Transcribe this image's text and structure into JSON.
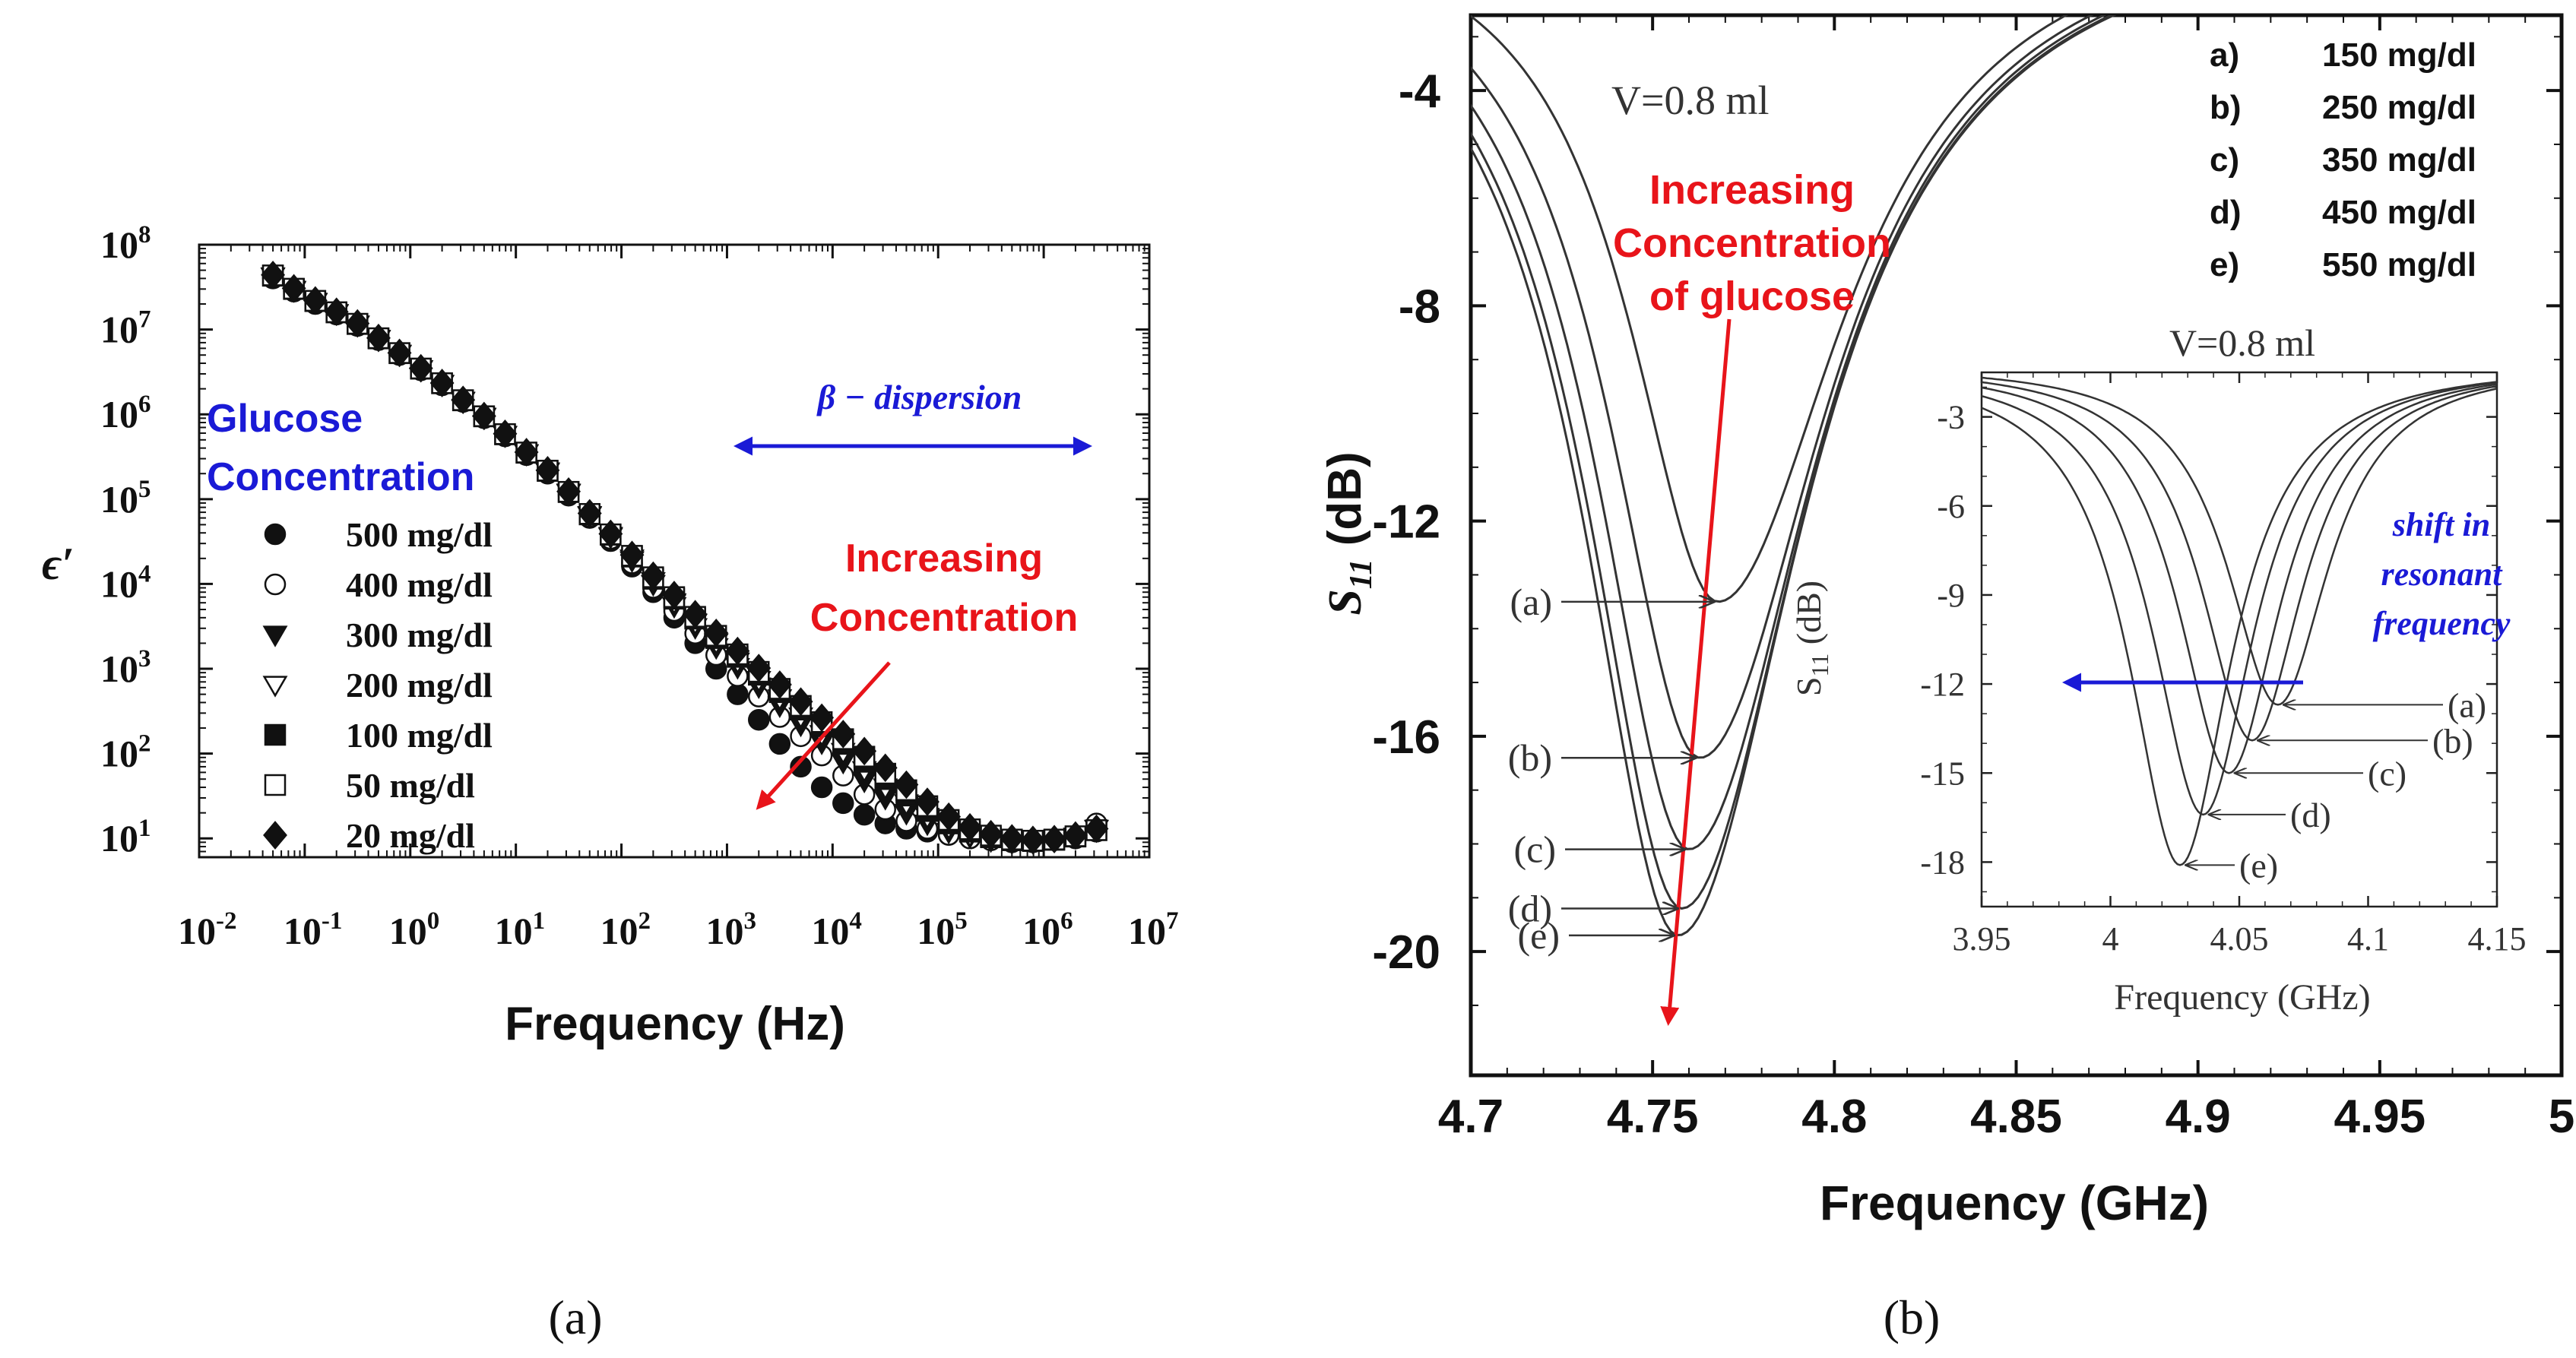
{
  "chart_data": [
    {
      "panel": "a",
      "panel_label": "(a)",
      "type": "scatter",
      "title": "",
      "xlabel": "Frequency (Hz)",
      "ylabel": "ϵ′",
      "xscale": "log",
      "yscale": "log",
      "xlim": [
        0.01,
        10000000
      ],
      "ylim": [
        6,
        100000000
      ],
      "x_tick_labels": [
        {
          "base": "10",
          "exp": "-2"
        },
        {
          "base": "10",
          "exp": "-1"
        },
        {
          "base": "10",
          "exp": "0"
        },
        {
          "base": "10",
          "exp": "1"
        },
        {
          "base": "10",
          "exp": "2"
        },
        {
          "base": "10",
          "exp": "3"
        },
        {
          "base": "10",
          "exp": "4"
        },
        {
          "base": "10",
          "exp": "5"
        },
        {
          "base": "10",
          "exp": "6"
        },
        {
          "base": "10",
          "exp": "7"
        }
      ],
      "y_tick_labels": [
        {
          "base": "10",
          "exp": "1"
        },
        {
          "base": "10",
          "exp": "2"
        },
        {
          "base": "10",
          "exp": "3"
        },
        {
          "base": "10",
          "exp": "4"
        },
        {
          "base": "10",
          "exp": "5"
        },
        {
          "base": "10",
          "exp": "6"
        },
        {
          "base": "10",
          "exp": "7"
        },
        {
          "base": "10",
          "exp": "8"
        }
      ],
      "legend_title": [
        "Glucose",
        "Concentration"
      ],
      "annotations": {
        "dispersion": "β − dispersion",
        "increasing": [
          "Increasing",
          "Concentration"
        ]
      },
      "x": [
        0.05,
        0.079,
        0.126,
        0.2,
        0.316,
        0.5,
        0.79,
        1.26,
        2,
        3.16,
        5,
        7.9,
        12.6,
        20,
        31.6,
        50,
        79,
        126,
        200,
        316,
        500,
        790,
        1260,
        2000,
        3160,
        5000,
        7900,
        12600,
        20000,
        31600,
        50000,
        79000,
        126000,
        200000,
        316000,
        500000,
        790000,
        1260000,
        2000000,
        3160000
      ],
      "series": [
        {
          "name": "500 mg/dl",
          "marker": "filled-circle",
          "values": [
            40000000,
            28000000,
            20000000,
            15000000,
            11000000,
            7500000,
            5000000,
            3300000,
            2200000,
            1400000,
            900000,
            550000,
            330000,
            200000,
            110000,
            60000,
            32000,
            16000,
            8000,
            4000,
            2000,
            1000,
            500,
            250,
            130,
            70,
            40,
            26,
            19,
            15,
            13,
            12,
            11,
            10,
            9.5,
            9,
            9,
            9.5,
            10,
            12
          ]
        },
        {
          "name": "400 mg/dl",
          "marker": "open-circle",
          "values": [
            41000000,
            28500000,
            20500000,
            15300000,
            11200000,
            7600000,
            5100000,
            3350000,
            2250000,
            1420000,
            920000,
            560000,
            340000,
            205000,
            115000,
            62000,
            34000,
            17500,
            9000,
            4800,
            2600,
            1450,
            820,
            470,
            270,
            160,
            95,
            55,
            33,
            22,
            16,
            13,
            11,
            10,
            9.5,
            9,
            9,
            9.5,
            10.5,
            15
          ]
        },
        {
          "name": "300 mg/dl",
          "marker": "filled-triangle-down",
          "values": [
            42000000,
            29000000,
            21000000,
            15500000,
            11400000,
            7700000,
            5150000,
            3400000,
            2280000,
            1440000,
            930000,
            570000,
            345000,
            210000,
            118000,
            64000,
            36000,
            19000,
            10000,
            5500,
            3100,
            1800,
            1050,
            620,
            370,
            220,
            135,
            80,
            48,
            30,
            20,
            15,
            12,
            10.5,
            9.5,
            9,
            9,
            9.5,
            10.5,
            13
          ]
        },
        {
          "name": "200 mg/dl",
          "marker": "open-triangle-down",
          "values": [
            42500000,
            29500000,
            21300000,
            15700000,
            11500000,
            7800000,
            5200000,
            3420000,
            2300000,
            1450000,
            940000,
            575000,
            350000,
            213000,
            120000,
            65000,
            37000,
            20000,
            10800,
            6100,
            3500,
            2050,
            1220,
            740,
            450,
            275,
            170,
            105,
            64,
            40,
            26,
            18,
            13.5,
            11,
            10,
            9.3,
            9.2,
            9.6,
            10.5,
            13
          ]
        },
        {
          "name": "100 mg/dl",
          "marker": "filled-square",
          "values": [
            43000000,
            30000000,
            21600000,
            15900000,
            11600000,
            7850000,
            5250000,
            3450000,
            2320000,
            1460000,
            945000,
            580000,
            352000,
            215000,
            121000,
            66000,
            38000,
            21000,
            11500,
            6700,
            3900,
            2300,
            1380,
            850,
            530,
            330,
            210,
            130,
            80,
            50,
            32,
            21,
            15,
            12,
            10.3,
            9.5,
            9.3,
            9.6,
            10.5,
            12.5
          ]
        },
        {
          "name": "50 mg/dl",
          "marker": "open-square",
          "values": [
            43500000,
            30300000,
            21800000,
            16000000,
            11700000,
            7900000,
            5280000,
            3470000,
            2330000,
            1470000,
            950000,
            585000,
            355000,
            217000,
            122000,
            67000,
            38500,
            21500,
            12000,
            7000,
            4100,
            2450,
            1480,
            920,
            580,
            365,
            235,
            148,
            92,
            58,
            37,
            24,
            16.5,
            12.8,
            10.8,
            9.7,
            9.4,
            9.7,
            10.6,
            12.5
          ]
        },
        {
          "name": "20 mg/dl",
          "marker": "filled-diamond",
          "values": [
            44000000,
            30600000,
            22000000,
            16200000,
            11800000,
            7950000,
            5300000,
            3490000,
            2340000,
            1480000,
            955000,
            590000,
            358000,
            219000,
            123000,
            68000,
            39000,
            22000,
            12500,
            7400,
            4400,
            2650,
            1620,
            1020,
            650,
            410,
            265,
            170,
            107,
            68,
            43,
            27,
            18,
            13.5,
            11.2,
            10,
            9.6,
            9.8,
            10.8,
            13
          ]
        }
      ]
    },
    {
      "panel": "b",
      "panel_label": "(b)",
      "type": "line",
      "title": "V=0.8 ml",
      "xlabel": "Frequency (GHz)",
      "ylabel": "S11 (dB)",
      "ylabel_main": "S",
      "ylabel_sub": "11",
      "ylabel_unit": " (dB)",
      "xlim": [
        4.7,
        5.0
      ],
      "ylim": [
        -22.3,
        -2.6
      ],
      "x_ticks": [
        "4.7",
        "4.75",
        "4.8",
        "4.85",
        "4.9",
        "4.95",
        "5"
      ],
      "y_ticks": [
        "-4",
        "-8",
        "-12",
        "-16",
        "-20"
      ],
      "legend_entries": [
        {
          "key": "a)",
          "label": "150 mg/dl"
        },
        {
          "key": "b)",
          "label": "250 mg/dl"
        },
        {
          "key": "c)",
          "label": "350 mg/dl"
        },
        {
          "key": "d)",
          "label": "450 mg/dl"
        },
        {
          "key": "e)",
          "label": "550 mg/dl"
        }
      ],
      "annotations": {
        "increasing": [
          "Increasing",
          "Concentration",
          "of glucose"
        ]
      },
      "series": [
        {
          "name": "(a)",
          "resonance_ghz": 4.768,
          "min_db": -13.5
        },
        {
          "name": "(b)",
          "resonance_ghz": 4.763,
          "min_db": -16.4
        },
        {
          "name": "(c)",
          "resonance_ghz": 4.76,
          "min_db": -18.1
        },
        {
          "name": "(d)",
          "resonance_ghz": 4.758,
          "min_db": -19.2
        },
        {
          "name": "(e)",
          "resonance_ghz": 4.757,
          "min_db": -19.7
        }
      ],
      "inset": {
        "title": "V=0.8 ml",
        "xlabel": "Frequency (GHz)",
        "ylabel": "S11 (dB)",
        "ylabel_main": "S",
        "ylabel_sub": "11",
        "ylabel_unit": " (dB)",
        "xlim": [
          3.95,
          4.15
        ],
        "ylim": [
          -19.5,
          -1.5
        ],
        "x_ticks": [
          "3.95",
          "4",
          "4.05",
          "4.1",
          "4.15"
        ],
        "y_ticks": [
          "-3",
          "-6",
          "-9",
          "-12",
          "-15",
          "-18"
        ],
        "annotation": [
          "shift in",
          "resonant",
          "frequency"
        ],
        "series": [
          {
            "name": "(a)",
            "resonance_ghz": 4.065,
            "min_db": -12.7
          },
          {
            "name": "(b)",
            "resonance_ghz": 4.055,
            "min_db": -13.9
          },
          {
            "name": "(c)",
            "resonance_ghz": 4.046,
            "min_db": -15.0
          },
          {
            "name": "(d)",
            "resonance_ghz": 4.036,
            "min_db": -16.4
          },
          {
            "name": "(e)",
            "resonance_ghz": 4.027,
            "min_db": -18.1
          }
        ]
      }
    }
  ]
}
